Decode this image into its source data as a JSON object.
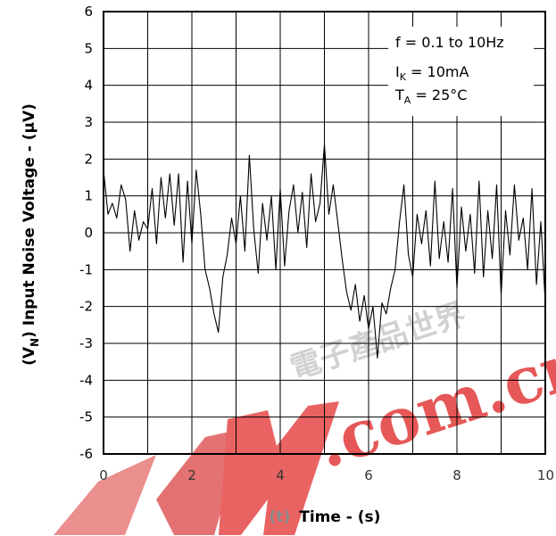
{
  "chart_data": {
    "type": "line",
    "xlabel_symbol": "(t)",
    "xlabel": "Time - (s)",
    "ylabel": "(V",
    "ylabel_sub": "N",
    "ylabel_rest": ")  Input Noise Voltage - (µV)",
    "xlim": [
      0,
      10
    ],
    "ylim": [
      -6,
      6
    ],
    "x_ticks": [
      0,
      2,
      4,
      6,
      8,
      10
    ],
    "x_tick_labels": [
      "0",
      "2",
      "4",
      "6",
      "8",
      "10"
    ],
    "y_ticks": [
      6,
      5,
      4,
      3,
      2,
      1,
      0,
      -1,
      -2,
      -3,
      -4,
      -5,
      -6
    ],
    "y_tick_labels": [
      "6",
      "5",
      "4",
      "3",
      "2",
      "1",
      "0",
      "-1",
      "-2",
      "-3",
      "-4",
      "-5",
      "-6"
    ],
    "grid": true,
    "annotation": {
      "line1": "f = 0.1 to 10Hz",
      "line2_main": "I",
      "line2_sub": "K",
      "line2_rest": " = 10mA",
      "line3_main": "T",
      "line3_sub": "A",
      "line3_rest": " = 25°C"
    },
    "series": [
      {
        "x": [
          0.0,
          0.1,
          0.2,
          0.3,
          0.4,
          0.5,
          0.6,
          0.7,
          0.8,
          0.9,
          1.0,
          1.1,
          1.2,
          1.3,
          1.4,
          1.5,
          1.6,
          1.7,
          1.8,
          1.9,
          2.0,
          2.1,
          2.2,
          2.3,
          2.4,
          2.5,
          2.6,
          2.7,
          2.8,
          2.9,
          3.0,
          3.1,
          3.2,
          3.3,
          3.4,
          3.5,
          3.6,
          3.7,
          3.8,
          3.9,
          4.0,
          4.1,
          4.2,
          4.3,
          4.4,
          4.5,
          4.6,
          4.7,
          4.8,
          4.9,
          5.0,
          5.1,
          5.2,
          5.3,
          5.4,
          5.5,
          5.6,
          5.7,
          5.8,
          5.9,
          6.0,
          6.1,
          6.2,
          6.3,
          6.4,
          6.5,
          6.6,
          6.7,
          6.8,
          6.9,
          7.0,
          7.1,
          7.2,
          7.3,
          7.4,
          7.5,
          7.6,
          7.7,
          7.8,
          7.9,
          8.0,
          8.1,
          8.2,
          8.3,
          8.4,
          8.5,
          8.6,
          8.7,
          8.8,
          8.9,
          9.0,
          9.1,
          9.2,
          9.3,
          9.4,
          9.5,
          9.6,
          9.7,
          9.8,
          9.9,
          10.0
        ],
        "values": [
          1.7,
          0.5,
          0.8,
          0.4,
          1.3,
          0.9,
          -0.5,
          0.6,
          -0.2,
          0.3,
          0.1,
          1.2,
          -0.3,
          1.5,
          0.4,
          1.6,
          0.2,
          1.6,
          -0.8,
          1.4,
          -0.3,
          1.7,
          0.5,
          -1.0,
          -1.5,
          -2.2,
          -2.7,
          -1.2,
          -0.6,
          0.4,
          -0.3,
          1.0,
          -0.5,
          2.1,
          0.1,
          -1.1,
          0.8,
          -0.2,
          1.0,
          -1.0,
          1.2,
          -0.9,
          0.6,
          1.3,
          0.0,
          1.1,
          -0.4,
          1.6,
          0.3,
          0.8,
          2.4,
          0.5,
          1.3,
          0.3,
          -0.7,
          -1.6,
          -2.1,
          -1.4,
          -2.4,
          -1.7,
          -2.6,
          -2.0,
          -3.4,
          -1.9,
          -2.2,
          -1.5,
          -1.0,
          0.3,
          1.3,
          -0.6,
          -1.2,
          0.5,
          -0.3,
          0.6,
          -0.9,
          1.4,
          -0.7,
          0.3,
          -0.8,
          1.2,
          -1.5,
          0.7,
          -0.5,
          0.5,
          -1.1,
          1.4,
          -1.2,
          0.6,
          -0.7,
          1.3,
          -1.7,
          0.6,
          -0.6,
          1.3,
          -0.2,
          0.4,
          -1.0,
          1.2,
          -1.4,
          0.3,
          -1.9
        ]
      }
    ]
  },
  "watermark": {
    "brand": "EDN",
    "domain": ".com.cn",
    "chinese": "電子產品世界"
  }
}
